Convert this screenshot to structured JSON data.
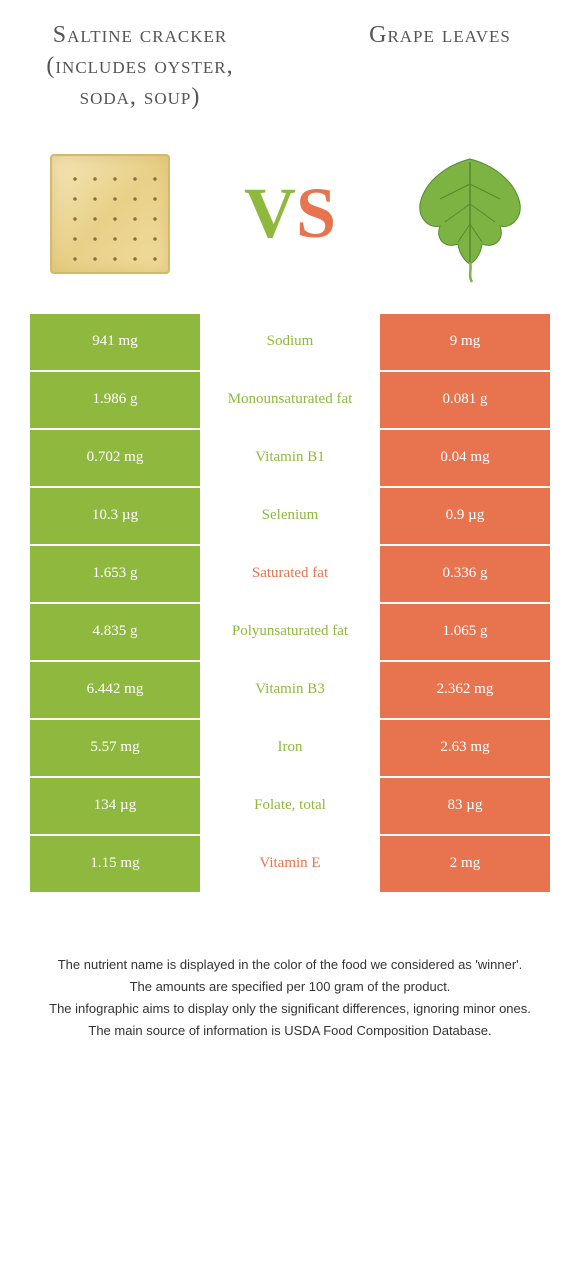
{
  "foods": {
    "left": {
      "title": "Saltine cracker (includes oyster, soda, soup)"
    },
    "right": {
      "title": "Grape leaves"
    }
  },
  "vs": {
    "v": "V",
    "s": "S"
  },
  "colors": {
    "left": "#8fb93e",
    "right": "#e8734f"
  },
  "rows": [
    {
      "left": "941 mg",
      "label": "Sodium",
      "right": "9 mg",
      "winner": "left"
    },
    {
      "left": "1.986 g",
      "label": "Monounsaturated fat",
      "right": "0.081 g",
      "winner": "left"
    },
    {
      "left": "0.702 mg",
      "label": "Vitamin B1",
      "right": "0.04 mg",
      "winner": "left"
    },
    {
      "left": "10.3 µg",
      "label": "Selenium",
      "right": "0.9 µg",
      "winner": "left"
    },
    {
      "left": "1.653 g",
      "label": "Saturated fat",
      "right": "0.336 g",
      "winner": "right"
    },
    {
      "left": "4.835 g",
      "label": "Polyunsaturated fat",
      "right": "1.065 g",
      "winner": "left"
    },
    {
      "left": "6.442 mg",
      "label": "Vitamin B3",
      "right": "2.362 mg",
      "winner": "left"
    },
    {
      "left": "5.57 mg",
      "label": "Iron",
      "right": "2.63 mg",
      "winner": "left"
    },
    {
      "left": "134 µg",
      "label": "Folate, total",
      "right": "83 µg",
      "winner": "left"
    },
    {
      "left": "1.15 mg",
      "label": "Vitamin E",
      "right": "2 mg",
      "winner": "right"
    }
  ],
  "footer": {
    "line1": "The nutrient name is displayed in the color of the food we considered as 'winner'.",
    "line2": "The amounts are specified per 100 gram of the product.",
    "line3": "The infographic aims to display only the significant differences, ignoring minor ones.",
    "line4": "The main source of information is USDA Food Composition Database."
  }
}
